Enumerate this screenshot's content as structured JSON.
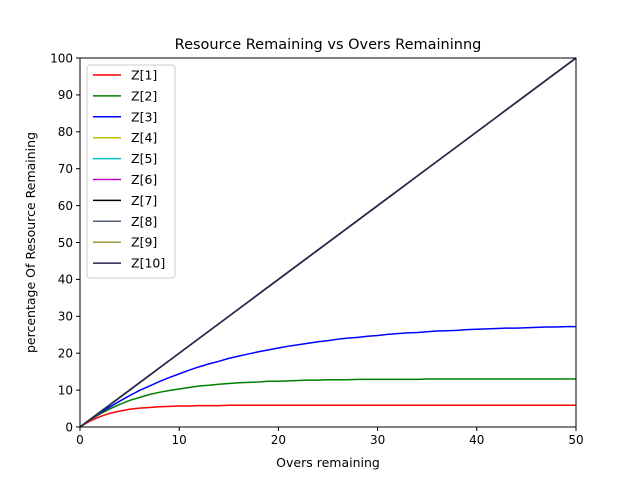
{
  "chart_data": {
    "type": "line",
    "title": "Resource Remaining vs Overs Remaininng",
    "xlabel": "Overs remaining",
    "ylabel": "percentage Of Resource Remaining",
    "xlim": [
      0,
      50
    ],
    "ylim": [
      0,
      100
    ],
    "xticks": [
      "0",
      "10",
      "20",
      "30",
      "40",
      "50"
    ],
    "yticks": [
      "0",
      "10",
      "20",
      "30",
      "40",
      "50",
      "60",
      "70",
      "80",
      "90",
      "100"
    ],
    "grid": false,
    "legend_position": "top-left",
    "x": [
      0,
      1,
      2,
      3,
      4,
      5,
      6,
      7,
      8,
      9,
      10,
      11,
      12,
      13,
      14,
      15,
      16,
      17,
      18,
      19,
      20,
      21,
      22,
      23,
      24,
      25,
      26,
      27,
      28,
      29,
      30,
      31,
      32,
      33,
      34,
      35,
      36,
      37,
      38,
      39,
      40,
      41,
      42,
      43,
      44,
      45,
      46,
      47,
      48,
      49,
      50
    ],
    "series": [
      {
        "name": "Z[1]",
        "color": "#ff0000",
        "values": [
          0,
          1.6,
          2.8,
          3.7,
          4.3,
          4.8,
          5.1,
          5.3,
          5.5,
          5.6,
          5.7,
          5.7,
          5.8,
          5.8,
          5.8,
          5.9,
          5.9,
          5.9,
          5.9,
          5.9,
          5.9,
          5.9,
          5.9,
          5.9,
          5.9,
          5.9,
          5.9,
          5.9,
          5.9,
          5.9,
          5.9,
          5.9,
          5.9,
          5.9,
          5.9,
          5.9,
          5.9,
          5.9,
          5.9,
          5.9,
          5.9,
          5.9,
          5.9,
          5.9,
          5.9,
          5.9,
          5.9,
          5.9,
          5.9,
          5.9,
          5.9
        ]
      },
      {
        "name": "Z[2]",
        "color": "#008000",
        "values": [
          0,
          1.9,
          3.5,
          4.9,
          6.1,
          7.2,
          8.0,
          8.8,
          9.4,
          9.9,
          10.3,
          10.7,
          11.1,
          11.3,
          11.6,
          11.8,
          12.0,
          12.1,
          12.2,
          12.4,
          12.4,
          12.5,
          12.6,
          12.7,
          12.7,
          12.8,
          12.8,
          12.8,
          12.9,
          12.9,
          12.9,
          12.9,
          12.9,
          12.9,
          12.9,
          13.0,
          13.0,
          13.0,
          13.0,
          13.0,
          13.0,
          13.0,
          13.0,
          13.0,
          13.0,
          13.0,
          13.0,
          13.0,
          13.0,
          13.0,
          13.0
        ]
      },
      {
        "name": "Z[3]",
        "color": "#0000ff",
        "values": [
          0,
          1.9,
          3.8,
          5.4,
          7.0,
          8.5,
          9.9,
          11.1,
          12.3,
          13.4,
          14.4,
          15.4,
          16.3,
          17.1,
          17.8,
          18.6,
          19.2,
          19.8,
          20.4,
          20.9,
          21.4,
          21.9,
          22.3,
          22.7,
          23.1,
          23.4,
          23.8,
          24.1,
          24.3,
          24.6,
          24.8,
          25.1,
          25.3,
          25.5,
          25.6,
          25.8,
          26.0,
          26.1,
          26.2,
          26.4,
          26.5,
          26.6,
          26.7,
          26.8,
          26.8,
          26.9,
          27.0,
          27.1,
          27.1,
          27.2,
          27.2
        ]
      },
      {
        "name": "Z[4]",
        "color": "#bfbf00",
        "values": [
          0,
          2,
          4,
          6,
          8,
          10,
          12,
          14,
          16,
          18,
          20,
          22,
          24,
          26,
          28,
          30,
          32,
          34,
          36,
          38,
          40,
          42,
          44,
          46,
          48,
          50,
          52,
          54,
          56,
          58,
          60,
          62,
          64,
          66,
          68,
          70,
          72,
          74,
          76,
          78,
          80,
          82,
          84,
          86,
          88,
          90,
          92,
          94,
          96,
          98,
          100
        ]
      },
      {
        "name": "Z[5]",
        "color": "#00bfbf",
        "values": [
          0,
          2,
          4,
          6,
          8,
          10,
          12,
          14,
          16,
          18,
          20,
          22,
          24,
          26,
          28,
          30,
          32,
          34,
          36,
          38,
          40,
          42,
          44,
          46,
          48,
          50,
          52,
          54,
          56,
          58,
          60,
          62,
          64,
          66,
          68,
          70,
          72,
          74,
          76,
          78,
          80,
          82,
          84,
          86,
          88,
          90,
          92,
          94,
          96,
          98,
          100
        ]
      },
      {
        "name": "Z[6]",
        "color": "#bf00bf",
        "values": [
          0,
          2,
          4,
          6,
          8,
          10,
          12,
          14,
          16,
          18,
          20,
          22,
          24,
          26,
          28,
          30,
          32,
          34,
          36,
          38,
          40,
          42,
          44,
          46,
          48,
          50,
          52,
          54,
          56,
          58,
          60,
          62,
          64,
          66,
          68,
          70,
          72,
          74,
          76,
          78,
          80,
          82,
          84,
          86,
          88,
          90,
          92,
          94,
          96,
          98,
          100
        ]
      },
      {
        "name": "Z[7]",
        "color": "#000000",
        "values": [
          0,
          2,
          4,
          6,
          8,
          10,
          12,
          14,
          16,
          18,
          20,
          22,
          24,
          26,
          28,
          30,
          32,
          34,
          36,
          38,
          40,
          42,
          44,
          46,
          48,
          50,
          52,
          54,
          56,
          58,
          60,
          62,
          64,
          66,
          68,
          70,
          72,
          74,
          76,
          78,
          80,
          82,
          84,
          86,
          88,
          90,
          92,
          94,
          96,
          98,
          100
        ]
      },
      {
        "name": "Z[8]",
        "color": "#4f5d75",
        "values": [
          0,
          2,
          4,
          6,
          8,
          10,
          12,
          14,
          16,
          18,
          20,
          22,
          24,
          26,
          28,
          30,
          32,
          34,
          36,
          38,
          40,
          42,
          44,
          46,
          48,
          50,
          52,
          54,
          56,
          58,
          60,
          62,
          64,
          66,
          68,
          70,
          72,
          74,
          76,
          78,
          80,
          82,
          84,
          86,
          88,
          90,
          92,
          94,
          96,
          98,
          100
        ]
      },
      {
        "name": "Z[9]",
        "color": "#9a9a3a",
        "values": [
          0,
          2,
          4,
          6,
          8,
          10,
          12,
          14,
          16,
          18,
          20,
          22,
          24,
          26,
          28,
          30,
          32,
          34,
          36,
          38,
          40,
          42,
          44,
          46,
          48,
          50,
          52,
          54,
          56,
          58,
          60,
          62,
          64,
          66,
          68,
          70,
          72,
          74,
          76,
          78,
          80,
          82,
          84,
          86,
          88,
          90,
          92,
          94,
          96,
          98,
          100
        ]
      },
      {
        "name": "Z[10]",
        "color": "#262650",
        "values": [
          0,
          2,
          4,
          6,
          8,
          10,
          12,
          14,
          16,
          18,
          20,
          22,
          24,
          26,
          28,
          30,
          32,
          34,
          36,
          38,
          40,
          42,
          44,
          46,
          48,
          50,
          52,
          54,
          56,
          58,
          60,
          62,
          64,
          66,
          68,
          70,
          72,
          74,
          76,
          78,
          80,
          82,
          84,
          86,
          88,
          90,
          92,
          94,
          96,
          98,
          100
        ]
      }
    ]
  }
}
